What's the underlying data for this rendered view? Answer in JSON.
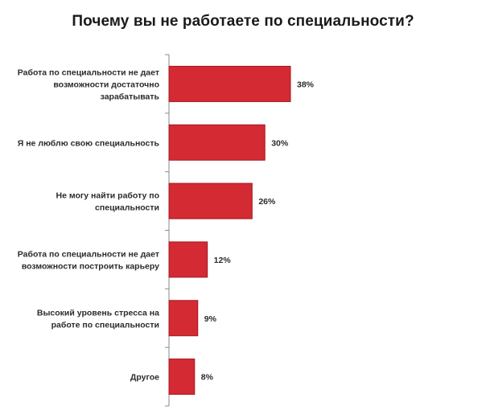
{
  "chart_data": {
    "type": "bar",
    "orientation": "horizontal",
    "title": "Почему вы не работаете по специальности?",
    "categories": [
      [
        "Работа по специальности не дает",
        "возможности достаточно",
        "зарабатывать"
      ],
      [
        "Я не люблю свою специальность"
      ],
      [
        "Не могу найти работу по",
        "специальности"
      ],
      [
        "Работа по специальности не дает",
        "возможности построить карьеру"
      ],
      [
        "Высокий уровень стресса на",
        "работе по специальности"
      ],
      [
        "Другое"
      ]
    ],
    "values": [
      38,
      30,
      26,
      12,
      9,
      8
    ],
    "value_labels": [
      "38%",
      "30%",
      "26%",
      "12%",
      "9%",
      "8%"
    ],
    "unit": "%",
    "xlim": [
      0,
      38
    ],
    "colors": {
      "bar_fill": "#d42a33",
      "bar_edge": "#a31820",
      "axis": "#8a8a8a"
    },
    "grid": false,
    "legend": "none"
  }
}
